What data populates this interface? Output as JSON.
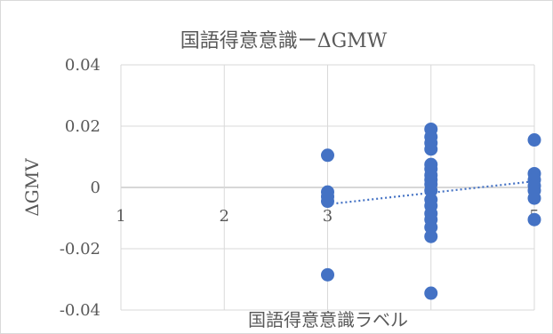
{
  "chart_data": {
    "type": "scatter",
    "title": "国語得意意識ーΔGMW",
    "xlabel": "国語得意意識ラベル",
    "ylabel": "ΔGMV",
    "xlim": [
      1,
      5
    ],
    "ylim": [
      -0.04,
      0.04
    ],
    "y_ticks": [
      "0.04",
      "0.02",
      "0",
      "-0.02",
      "-0.04"
    ],
    "y_tick_values": [
      0.04,
      0.02,
      0,
      -0.02,
      -0.04
    ],
    "x_ticks": [
      "1",
      "2",
      "3",
      "4",
      "5"
    ],
    "x_tick_values": [
      1,
      2,
      3,
      4,
      5
    ],
    "grid": true,
    "point_color": "#4472c4",
    "points": [
      {
        "x": 3,
        "y": 0.0105
      },
      {
        "x": 3,
        "y": -0.0015
      },
      {
        "x": 3,
        "y": -0.003
      },
      {
        "x": 3,
        "y": -0.0045
      },
      {
        "x": 3,
        "y": -0.0285
      },
      {
        "x": 4,
        "y": 0.019
      },
      {
        "x": 4,
        "y": 0.0165
      },
      {
        "x": 4,
        "y": 0.0145
      },
      {
        "x": 4,
        "y": 0.0125
      },
      {
        "x": 4,
        "y": 0.0075
      },
      {
        "x": 4,
        "y": 0.006
      },
      {
        "x": 4,
        "y": 0.004
      },
      {
        "x": 4,
        "y": 0.0025
      },
      {
        "x": 4,
        "y": 0.001
      },
      {
        "x": 4,
        "y": -0.001
      },
      {
        "x": 4,
        "y": -0.004
      },
      {
        "x": 4,
        "y": -0.006
      },
      {
        "x": 4,
        "y": -0.0085
      },
      {
        "x": 4,
        "y": -0.0105
      },
      {
        "x": 4,
        "y": -0.013
      },
      {
        "x": 4,
        "y": -0.016
      },
      {
        "x": 4,
        "y": -0.0345
      },
      {
        "x": 5,
        "y": 0.0155
      },
      {
        "x": 5,
        "y": 0.0045
      },
      {
        "x": 5,
        "y": 0.0025
      },
      {
        "x": 5,
        "y": 0.0005
      },
      {
        "x": 5,
        "y": -0.001
      },
      {
        "x": 5,
        "y": -0.0035
      },
      {
        "x": 5,
        "y": -0.0105
      }
    ],
    "trendline": {
      "type": "linear",
      "x": [
        3,
        5
      ],
      "y": [
        -0.0055,
        0.002
      ]
    }
  }
}
